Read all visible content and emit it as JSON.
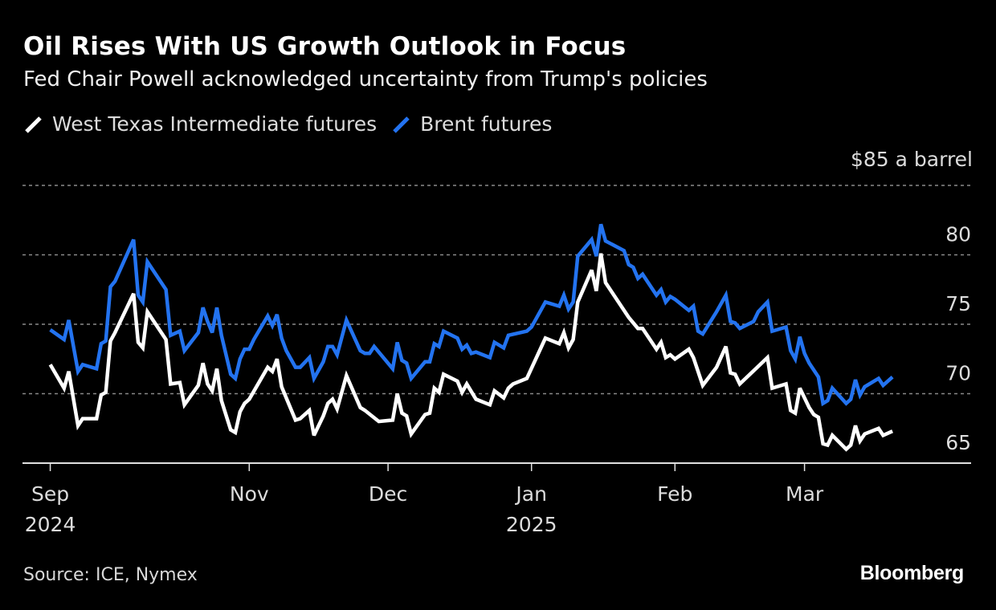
{
  "header": {
    "title": "Oil Rises With US Growth Outlook in Focus",
    "subtitle": "Fed Chair Powell acknowledged uncertainty from Trump's policies"
  },
  "footer": {
    "source": "Source: ICE, Nymex",
    "brand": "Bloomberg"
  },
  "chart_data": {
    "type": "line",
    "title": "Oil Rises With US Growth Outlook in Focus",
    "subtitle": "Fed Chair Powell acknowledged uncertainty from Trump's policies",
    "xlabel": "",
    "ylabel": "$ a barrel",
    "unit_label": "$85 a barrel",
    "ylim": [
      65,
      85
    ],
    "y_ticks": [
      {
        "value": 85,
        "label": "$85 a barrel"
      },
      {
        "value": 80,
        "label": "80"
      },
      {
        "value": 75,
        "label": "75"
      },
      {
        "value": 70,
        "label": "70"
      },
      {
        "value": 65,
        "label": "65"
      }
    ],
    "x_ticks": [
      {
        "date": "2024-09-19",
        "label": "Sep",
        "sublabel": "2024"
      },
      {
        "date": "2024-11-01",
        "label": "Nov",
        "sublabel": ""
      },
      {
        "date": "2024-12-01",
        "label": "Dec",
        "sublabel": ""
      },
      {
        "date": "2025-01-01",
        "label": "Jan",
        "sublabel": "2025"
      },
      {
        "date": "2025-02-01",
        "label": "Feb",
        "sublabel": ""
      },
      {
        "date": "2025-03-01",
        "label": "Mar",
        "sublabel": ""
      }
    ],
    "xlim": [
      "2024-09-13",
      "2025-04-06"
    ],
    "grid": true,
    "legend_position": "top-left",
    "series": [
      {
        "name": "West Texas Intermediate futures",
        "color": "#ffffff",
        "points": [
          [
            "2024-09-19",
            72.1
          ],
          [
            "2024-09-22",
            70.4
          ],
          [
            "2024-09-23",
            71.6
          ],
          [
            "2024-09-25",
            67.7
          ],
          [
            "2024-09-26",
            68.2
          ],
          [
            "2024-09-29",
            68.2
          ],
          [
            "2024-09-30",
            69.9
          ],
          [
            "2024-10-01",
            70.1
          ],
          [
            "2024-10-02",
            73.8
          ],
          [
            "2024-10-03",
            74.4
          ],
          [
            "2024-10-07",
            77.2
          ],
          [
            "2024-10-08",
            73.7
          ],
          [
            "2024-10-09",
            73.3
          ],
          [
            "2024-10-10",
            75.9
          ],
          [
            "2024-10-14",
            73.9
          ],
          [
            "2024-10-15",
            70.7
          ],
          [
            "2024-10-17",
            70.8
          ],
          [
            "2024-10-18",
            69.2
          ],
          [
            "2024-10-21",
            70.6
          ],
          [
            "2024-10-22",
            72.2
          ],
          [
            "2024-10-23",
            70.7
          ],
          [
            "2024-10-24",
            70.2
          ],
          [
            "2024-10-25",
            71.8
          ],
          [
            "2024-10-26",
            69.5
          ],
          [
            "2024-10-28",
            67.4
          ],
          [
            "2024-10-29",
            67.2
          ],
          [
            "2024-10-30",
            68.7
          ],
          [
            "2024-10-31",
            69.3
          ],
          [
            "2024-11-01",
            69.6
          ],
          [
            "2024-11-05",
            71.9
          ],
          [
            "2024-11-06",
            71.6
          ],
          [
            "2024-11-07",
            72.5
          ],
          [
            "2024-11-08",
            70.5
          ],
          [
            "2024-11-11",
            68.1
          ],
          [
            "2024-11-12",
            68.2
          ],
          [
            "2024-11-14",
            68.8
          ],
          [
            "2024-11-15",
            67.0
          ],
          [
            "2024-11-17",
            68.4
          ],
          [
            "2024-11-18",
            69.3
          ],
          [
            "2024-11-19",
            69.6
          ],
          [
            "2024-11-20",
            68.9
          ],
          [
            "2024-11-22",
            71.3
          ],
          [
            "2024-11-25",
            69.0
          ],
          [
            "2024-11-26",
            68.8
          ],
          [
            "2024-11-29",
            68.0
          ],
          [
            "2024-12-02",
            68.1
          ],
          [
            "2024-12-03",
            70.0
          ],
          [
            "2024-12-04",
            68.6
          ],
          [
            "2024-12-05",
            68.4
          ],
          [
            "2024-12-06",
            67.1
          ],
          [
            "2024-12-09",
            68.5
          ],
          [
            "2024-12-10",
            68.6
          ],
          [
            "2024-12-11",
            70.4
          ],
          [
            "2024-12-12",
            70.1
          ],
          [
            "2024-12-13",
            71.4
          ],
          [
            "2024-12-16",
            70.9
          ],
          [
            "2024-12-17",
            70.1
          ],
          [
            "2024-12-18",
            70.7
          ],
          [
            "2024-12-20",
            69.6
          ],
          [
            "2024-12-23",
            69.2
          ],
          [
            "2024-12-24",
            70.2
          ],
          [
            "2024-12-26",
            69.7
          ],
          [
            "2024-12-27",
            70.4
          ],
          [
            "2024-12-28",
            70.7
          ],
          [
            "2024-12-31",
            71.1
          ],
          [
            "2025-01-04",
            74.0
          ],
          [
            "2025-01-07",
            73.6
          ],
          [
            "2025-01-08",
            74.4
          ],
          [
            "2025-01-09",
            73.3
          ],
          [
            "2025-01-10",
            73.9
          ],
          [
            "2025-01-11",
            76.6
          ],
          [
            "2025-01-14",
            78.9
          ],
          [
            "2025-01-15",
            77.4
          ],
          [
            "2025-01-16",
            80.1
          ],
          [
            "2025-01-17",
            78.0
          ],
          [
            "2025-01-22",
            75.5
          ],
          [
            "2025-01-24",
            74.7
          ],
          [
            "2025-01-25",
            74.7
          ],
          [
            "2025-01-28",
            73.2
          ],
          [
            "2025-01-29",
            73.7
          ],
          [
            "2025-01-30",
            72.6
          ],
          [
            "2025-01-31",
            72.8
          ],
          [
            "2025-02-01",
            72.5
          ],
          [
            "2025-02-04",
            73.2
          ],
          [
            "2025-02-05",
            72.6
          ],
          [
            "2025-02-07",
            70.6
          ],
          [
            "2025-02-10",
            71.9
          ],
          [
            "2025-02-12",
            73.4
          ],
          [
            "2025-02-13",
            71.5
          ],
          [
            "2025-02-14",
            71.4
          ],
          [
            "2025-02-15",
            70.7
          ],
          [
            "2025-02-21",
            72.6
          ],
          [
            "2025-02-22",
            70.4
          ],
          [
            "2025-02-25",
            70.7
          ],
          [
            "2025-02-26",
            68.8
          ],
          [
            "2025-02-27",
            68.6
          ],
          [
            "2025-02-28",
            70.4
          ],
          [
            "2025-03-02",
            69.0
          ],
          [
            "2025-03-03",
            68.5
          ],
          [
            "2025-03-04",
            68.3
          ],
          [
            "2025-03-05",
            66.4
          ],
          [
            "2025-03-06",
            66.3
          ],
          [
            "2025-03-07",
            67.0
          ],
          [
            "2025-03-10",
            66.0
          ],
          [
            "2025-03-11",
            66.3
          ],
          [
            "2025-03-12",
            67.7
          ],
          [
            "2025-03-13",
            66.6
          ],
          [
            "2025-03-14",
            67.1
          ],
          [
            "2025-03-17",
            67.5
          ],
          [
            "2025-03-18",
            67.0
          ],
          [
            "2025-03-20",
            67.3
          ]
        ]
      },
      {
        "name": "Brent futures",
        "color": "#2373f0",
        "points": [
          [
            "2024-09-19",
            74.6
          ],
          [
            "2024-09-22",
            73.9
          ],
          [
            "2024-09-23",
            75.3
          ],
          [
            "2024-09-25",
            71.6
          ],
          [
            "2024-09-26",
            72.1
          ],
          [
            "2024-09-29",
            71.8
          ],
          [
            "2024-09-30",
            73.6
          ],
          [
            "2024-10-01",
            73.8
          ],
          [
            "2024-10-02",
            77.7
          ],
          [
            "2024-10-03",
            78.1
          ],
          [
            "2024-10-07",
            81.1
          ],
          [
            "2024-10-08",
            77.1
          ],
          [
            "2024-10-09",
            76.6
          ],
          [
            "2024-10-10",
            79.5
          ],
          [
            "2024-10-14",
            77.5
          ],
          [
            "2024-10-15",
            74.2
          ],
          [
            "2024-10-17",
            74.5
          ],
          [
            "2024-10-18",
            73.1
          ],
          [
            "2024-10-21",
            74.4
          ],
          [
            "2024-10-22",
            76.2
          ],
          [
            "2024-10-23",
            75.2
          ],
          [
            "2024-10-24",
            74.4
          ],
          [
            "2024-10-25",
            76.2
          ],
          [
            "2024-10-26",
            74.2
          ],
          [
            "2024-10-28",
            71.4
          ],
          [
            "2024-10-29",
            71.1
          ],
          [
            "2024-10-30",
            72.5
          ],
          [
            "2024-10-31",
            73.2
          ],
          [
            "2024-11-01",
            73.2
          ],
          [
            "2024-11-02",
            73.9
          ],
          [
            "2024-11-05",
            75.6
          ],
          [
            "2024-11-06",
            74.9
          ],
          [
            "2024-11-07",
            75.7
          ],
          [
            "2024-11-08",
            74.0
          ],
          [
            "2024-11-09",
            73.1
          ],
          [
            "2024-11-11",
            71.9
          ],
          [
            "2024-11-12",
            71.9
          ],
          [
            "2024-11-14",
            72.6
          ],
          [
            "2024-11-15",
            71.1
          ],
          [
            "2024-11-17",
            72.3
          ],
          [
            "2024-11-18",
            73.4
          ],
          [
            "2024-11-19",
            73.4
          ],
          [
            "2024-11-20",
            72.8
          ],
          [
            "2024-11-22",
            75.3
          ],
          [
            "2024-11-25",
            73.1
          ],
          [
            "2024-11-26",
            72.9
          ],
          [
            "2024-11-27",
            72.9
          ],
          [
            "2024-11-28",
            73.4
          ],
          [
            "2024-12-02",
            71.8
          ],
          [
            "2024-12-03",
            73.7
          ],
          [
            "2024-12-04",
            72.4
          ],
          [
            "2024-12-05",
            72.2
          ],
          [
            "2024-12-06",
            71.1
          ],
          [
            "2024-12-09",
            72.3
          ],
          [
            "2024-12-10",
            72.3
          ],
          [
            "2024-12-11",
            73.6
          ],
          [
            "2024-12-12",
            73.4
          ],
          [
            "2024-12-13",
            74.5
          ],
          [
            "2024-12-16",
            74.0
          ],
          [
            "2024-12-17",
            73.2
          ],
          [
            "2024-12-18",
            73.5
          ],
          [
            "2024-12-19",
            72.9
          ],
          [
            "2024-12-20",
            73.0
          ],
          [
            "2024-12-23",
            72.6
          ],
          [
            "2024-12-24",
            73.7
          ],
          [
            "2024-12-26",
            73.3
          ],
          [
            "2024-12-27",
            74.2
          ],
          [
            "2024-12-31",
            74.5
          ],
          [
            "2025-01-01",
            74.8
          ],
          [
            "2025-01-04",
            76.6
          ],
          [
            "2025-01-07",
            76.3
          ],
          [
            "2025-01-08",
            77.1
          ],
          [
            "2025-01-09",
            76.1
          ],
          [
            "2025-01-10",
            76.6
          ],
          [
            "2025-01-11",
            79.9
          ],
          [
            "2025-01-14",
            81.1
          ],
          [
            "2025-01-15",
            79.9
          ],
          [
            "2025-01-16",
            82.2
          ],
          [
            "2025-01-17",
            81.0
          ],
          [
            "2025-01-21",
            80.3
          ],
          [
            "2025-01-22",
            79.3
          ],
          [
            "2025-01-23",
            79.1
          ],
          [
            "2025-01-24",
            78.3
          ],
          [
            "2025-01-25",
            78.6
          ],
          [
            "2025-01-28",
            77.1
          ],
          [
            "2025-01-29",
            77.5
          ],
          [
            "2025-01-30",
            76.6
          ],
          [
            "2025-01-31",
            77.0
          ],
          [
            "2025-02-01",
            76.8
          ],
          [
            "2025-02-04",
            76.0
          ],
          [
            "2025-02-05",
            76.3
          ],
          [
            "2025-02-06",
            74.5
          ],
          [
            "2025-02-07",
            74.3
          ],
          [
            "2025-02-10",
            75.9
          ],
          [
            "2025-02-12",
            77.1
          ],
          [
            "2025-02-13",
            75.2
          ],
          [
            "2025-02-14",
            75.1
          ],
          [
            "2025-02-15",
            74.7
          ],
          [
            "2025-02-18",
            75.2
          ],
          [
            "2025-02-19",
            75.9
          ],
          [
            "2025-02-21",
            76.6
          ],
          [
            "2025-02-22",
            74.5
          ],
          [
            "2025-02-25",
            74.8
          ],
          [
            "2025-02-26",
            73.1
          ],
          [
            "2025-02-27",
            72.5
          ],
          [
            "2025-02-28",
            74.1
          ],
          [
            "2025-03-01",
            72.9
          ],
          [
            "2025-03-02",
            72.2
          ],
          [
            "2025-03-04",
            71.2
          ],
          [
            "2025-03-05",
            69.3
          ],
          [
            "2025-03-06",
            69.5
          ],
          [
            "2025-03-07",
            70.4
          ],
          [
            "2025-03-10",
            69.3
          ],
          [
            "2025-03-11",
            69.6
          ],
          [
            "2025-03-12",
            71.0
          ],
          [
            "2025-03-13",
            69.9
          ],
          [
            "2025-03-14",
            70.5
          ],
          [
            "2025-03-17",
            71.1
          ],
          [
            "2025-03-18",
            70.6
          ],
          [
            "2025-03-20",
            71.2
          ]
        ]
      }
    ]
  }
}
